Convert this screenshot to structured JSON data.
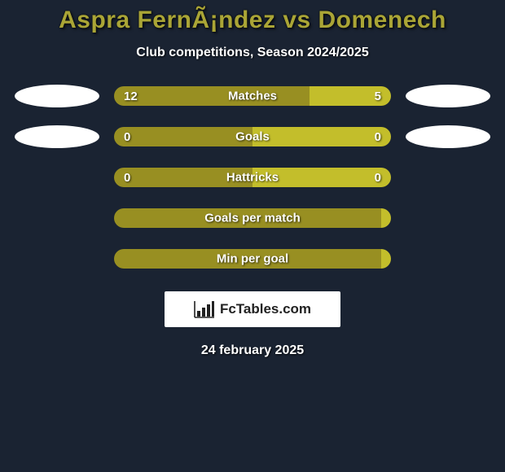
{
  "title": "Aspra FernÃ¡ndez vs Domenech",
  "subtitle": "Club competitions, Season 2024/2025",
  "date": "24 february 2025",
  "colors": {
    "background": "#1a2332",
    "accent": "#aaa536",
    "bar_primary": "#988f22",
    "bar_secondary": "#c3be2b",
    "text": "#ffffff",
    "logo_bg": "#ffffff",
    "logo_fg": "#222222"
  },
  "stats": [
    {
      "label": "Matches",
      "left_value": "12",
      "right_value": "5",
      "left_pct": 70.6,
      "right_pct": 29.4,
      "left_color": "#988f22",
      "right_color": "#c3be2b",
      "show_ellipses": true
    },
    {
      "label": "Goals",
      "left_value": "0",
      "right_value": "0",
      "left_pct": 50,
      "right_pct": 50,
      "left_color": "#988f22",
      "right_color": "#c3be2b",
      "show_ellipses": true
    },
    {
      "label": "Hattricks",
      "left_value": "0",
      "right_value": "0",
      "left_pct": 50,
      "right_pct": 50,
      "left_color": "#988f22",
      "right_color": "#c3be2b",
      "show_ellipses": false
    },
    {
      "label": "Goals per match",
      "left_value": "",
      "right_value": "",
      "left_pct": 100,
      "right_pct": 0,
      "left_color": "#988f22",
      "right_color": "#c3be2b",
      "show_ellipses": false
    },
    {
      "label": "Min per goal",
      "left_value": "",
      "right_value": "",
      "left_pct": 100,
      "right_pct": 0,
      "left_color": "#988f22",
      "right_color": "#c3be2b",
      "show_ellipses": false
    }
  ],
  "logo": {
    "text": "FcTables.com"
  }
}
